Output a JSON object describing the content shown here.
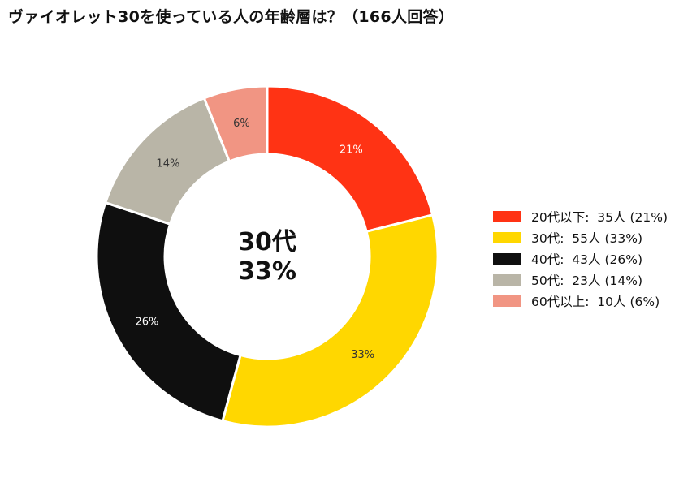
{
  "title": "ヴァイオレット30を使っている人の年齢層は？（166人回答）",
  "center": {
    "line1": "30代",
    "line2": "33%"
  },
  "chart_data": {
    "type": "pie",
    "donut": true,
    "total": 166,
    "slices": [
      {
        "label": "20代以下",
        "count": 35,
        "percent": 21,
        "color": "#ff3314",
        "label_color": "#ffffff"
      },
      {
        "label": "30代",
        "count": 55,
        "percent": 33,
        "color": "#ffd700",
        "label_color": "#333333"
      },
      {
        "label": "40代",
        "count": 43,
        "percent": 26,
        "color": "#0f0f0f",
        "label_color": "#ffffff"
      },
      {
        "label": "50代",
        "count": 23,
        "percent": 14,
        "color": "#b9b5a7",
        "label_color": "#333333"
      },
      {
        "label": "60代以上",
        "count": 10,
        "percent": 6,
        "color": "#f19583",
        "label_color": "#333333"
      }
    ],
    "legend_position": "right"
  }
}
